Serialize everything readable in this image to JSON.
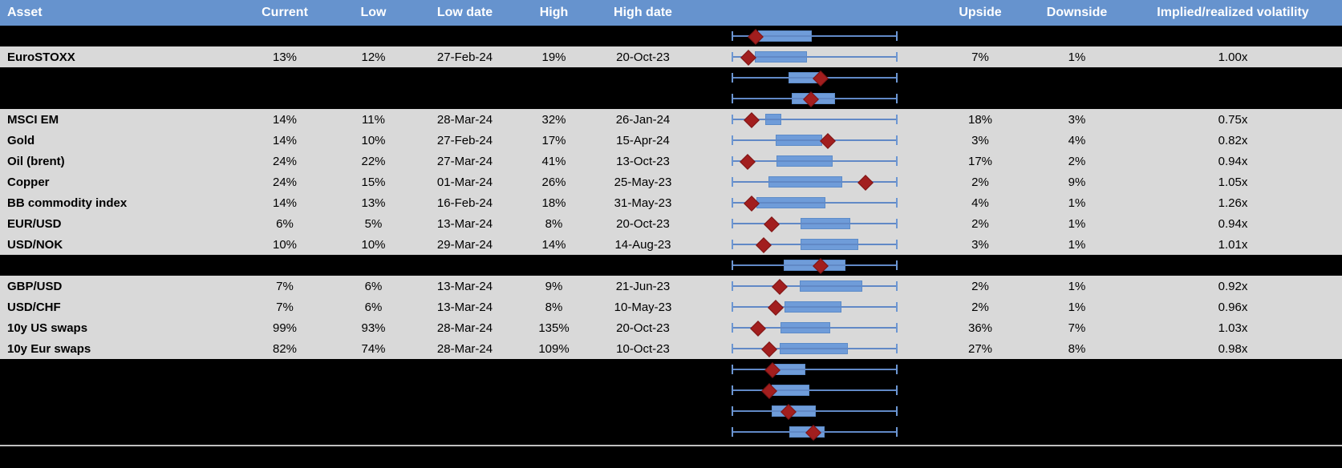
{
  "colors": {
    "header_bg": "#6693CE",
    "header_text": "#FFFFFF",
    "row_bg": "#D9D9D9",
    "hidden_bg": "#000000",
    "body_text": "#000000",
    "whisker": "#6C96D2",
    "box_fill": "#6F9CD9",
    "box_border": "#5C8BC8",
    "overline": "#6189C6",
    "diamond_fill": "#A21E1E",
    "diamond_border": "#7C1414",
    "separator": "#C0C0C0"
  },
  "header": {
    "asset": "Asset",
    "current": "Current",
    "low": "Low",
    "low_date": "Low date",
    "high": "High",
    "high_date": "High date",
    "boxplot": "",
    "upside": "Upside",
    "downside": "Downside",
    "implied": "Implied/realized volatility"
  },
  "boxplot_legend": {
    "whisker_meaning": "range (normalized min-max)",
    "box_meaning": "interquartile range",
    "diamond_meaning": "current level marker"
  },
  "rows": [
    {
      "type": "hidden",
      "asset": "",
      "current": "",
      "low": "",
      "low_date": "",
      "high": "",
      "high_date": "",
      "upside": "",
      "downside": "",
      "implied": "",
      "box": [
        0.156,
        0.473
      ],
      "d": 0.137
    },
    {
      "type": "data",
      "asset": "EuroSTOXX",
      "current": "13%",
      "low": "12%",
      "low_date": "27-Feb-24",
      "high": "19%",
      "high_date": "20-Oct-23",
      "upside": "7%",
      "downside": "1%",
      "implied": "1.00x",
      "box": [
        0.137,
        0.444
      ],
      "d": 0.095
    },
    {
      "type": "hidden",
      "asset": "",
      "current": "",
      "low": "",
      "low_date": "",
      "high": "",
      "high_date": "",
      "upside": "",
      "downside": "",
      "implied": "",
      "box": [
        0.341,
        0.517
      ],
      "d": 0.532
    },
    {
      "type": "hidden",
      "asset": "",
      "current": "",
      "low": "",
      "low_date": "",
      "high": "",
      "high_date": "",
      "upside": "",
      "downside": "",
      "implied": "",
      "box": [
        0.361,
        0.615
      ],
      "d": 0.478
    },
    {
      "type": "data",
      "asset": "MSCI EM",
      "current": "14%",
      "low": "11%",
      "low_date": "28-Mar-24",
      "high": "32%",
      "high_date": "26-Jan-24",
      "upside": "18%",
      "downside": "3%",
      "implied": "0.75x",
      "box": [
        0.2,
        0.29
      ],
      "d": 0.117
    },
    {
      "type": "data",
      "asset": "Gold",
      "current": "14%",
      "low": "10%",
      "low_date": "27-Feb-24",
      "high": "17%",
      "high_date": "15-Apr-24",
      "upside": "3%",
      "downside": "4%",
      "implied": "0.82x",
      "box": [
        0.263,
        0.537
      ],
      "d": 0.576
    },
    {
      "type": "data",
      "asset": "Oil (brent)",
      "current": "24%",
      "low": "22%",
      "low_date": "27-Mar-24",
      "high": "41%",
      "high_date": "13-Oct-23",
      "upside": "17%",
      "downside": "2%",
      "implied": "0.94x",
      "box": [
        0.268,
        0.6
      ],
      "d": 0.088
    },
    {
      "type": "data",
      "asset": "Copper",
      "current": "24%",
      "low": "15%",
      "low_date": "01-Mar-24",
      "high": "26%",
      "high_date": "25-May-23",
      "upside": "2%",
      "downside": "9%",
      "implied": "1.05x",
      "box": [
        0.22,
        0.659
      ],
      "d": 0.805
    },
    {
      "type": "data",
      "asset": "BB commodity index",
      "current": "14%",
      "low": "13%",
      "low_date": "16-Feb-24",
      "high": "18%",
      "high_date": "31-May-23",
      "upside": "4%",
      "downside": "1%",
      "implied": "1.26x",
      "box": [
        0.146,
        0.556
      ],
      "d": 0.117
    },
    {
      "type": "data",
      "asset": "EUR/USD",
      "current": "6%",
      "low": "5%",
      "low_date": "13-Mar-24",
      "high": "8%",
      "high_date": "20-Oct-23",
      "upside": "2%",
      "downside": "1%",
      "implied": "0.94x",
      "box": [
        0.415,
        0.707
      ],
      "d": 0.239
    },
    {
      "type": "data",
      "asset": "USD/NOK",
      "current": "10%",
      "low": "10%",
      "low_date": "29-Mar-24",
      "high": "14%",
      "high_date": "14-Aug-23",
      "upside": "3%",
      "downside": "1%",
      "implied": "1.01x",
      "box": [
        0.415,
        0.756
      ],
      "d": 0.19
    },
    {
      "type": "hidden",
      "asset": "",
      "current": "",
      "low": "",
      "low_date": "",
      "high": "",
      "high_date": "",
      "upside": "",
      "downside": "",
      "implied": "",
      "box": [
        0.312,
        0.678
      ],
      "d": 0.532
    },
    {
      "type": "data",
      "asset": "GBP/USD",
      "current": "7%",
      "low": "6%",
      "low_date": "13-Mar-24",
      "high": "9%",
      "high_date": "21-Jun-23",
      "upside": "2%",
      "downside": "1%",
      "implied": "0.92x",
      "box": [
        0.41,
        0.78
      ],
      "d": 0.283
    },
    {
      "type": "data",
      "asset": "USD/CHF",
      "current": "7%",
      "low": "6%",
      "low_date": "13-Mar-24",
      "high": "8%",
      "high_date": "10-May-23",
      "upside": "2%",
      "downside": "1%",
      "implied": "0.96x",
      "box": [
        0.317,
        0.654
      ],
      "d": 0.263
    },
    {
      "type": "data",
      "asset": "10y US swaps",
      "current": "99%",
      "low": "93%",
      "low_date": "28-Mar-24",
      "high": "135%",
      "high_date": "20-Oct-23",
      "upside": "36%",
      "downside": "7%",
      "implied": "1.03x",
      "box": [
        0.293,
        0.585
      ],
      "d": 0.156
    },
    {
      "type": "data",
      "asset": "10y Eur swaps",
      "current": "82%",
      "low": "74%",
      "low_date": "28-Mar-24",
      "high": "109%",
      "high_date": "10-Oct-23",
      "upside": "27%",
      "downside": "8%",
      "implied": "0.98x",
      "box": [
        0.288,
        0.693
      ],
      "d": 0.22
    },
    {
      "type": "hidden",
      "asset": "",
      "current": "",
      "low": "",
      "low_date": "",
      "high": "",
      "high_date": "",
      "upside": "",
      "downside": "",
      "implied": "",
      "box": [
        0.244,
        0.434
      ],
      "d": 0.24
    },
    {
      "type": "hidden",
      "asset": "",
      "current": "",
      "low": "",
      "low_date": "",
      "high": "",
      "high_date": "",
      "upside": "",
      "downside": "",
      "implied": "",
      "box": [
        0.239,
        0.459
      ],
      "d": 0.22
    },
    {
      "type": "hidden",
      "asset": "",
      "current": "",
      "low": "",
      "low_date": "",
      "high": "",
      "high_date": "",
      "upside": "",
      "downside": "",
      "implied": "",
      "box": [
        0.239,
        0.498
      ],
      "d": 0.341
    },
    {
      "type": "hidden",
      "asset": "",
      "current": "",
      "low": "",
      "low_date": "",
      "high": "",
      "high_date": "",
      "upside": "",
      "downside": "",
      "implied": "",
      "box": [
        0.346,
        0.551
      ],
      "d": 0.488
    }
  ]
}
